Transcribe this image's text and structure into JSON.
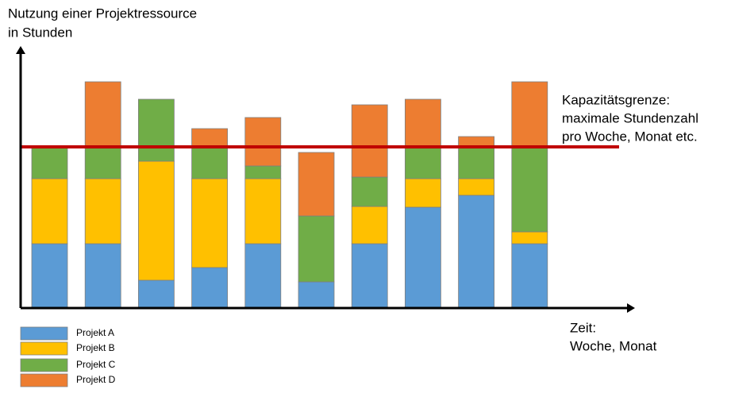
{
  "chart_data": {
    "type": "bar",
    "stacked": true,
    "y_label": [
      "Nutzung einer Projektressource",
      "in Stunden"
    ],
    "x_label": [
      "Zeit:",
      "Woche, Monat"
    ],
    "categories": [
      null,
      null,
      null,
      null,
      null,
      null,
      null,
      null,
      null,
      null
    ],
    "ylim": [
      0,
      330
    ],
    "series": [
      {
        "name": "Projekt A",
        "color": "#5b9bd5",
        "values": [
          81,
          81,
          35,
          51,
          81,
          33,
          81,
          127,
          142,
          81
        ]
      },
      {
        "name": "Projekt B",
        "color": "#ffc000",
        "values": [
          82,
          82,
          150,
          112,
          82,
          0,
          47,
          36,
          21,
          15
        ]
      },
      {
        "name": "Projekt C",
        "color": "#70ad47",
        "values": [
          39,
          39,
          78,
          39,
          16,
          83,
          37,
          39,
          39,
          106
        ]
      },
      {
        "name": "Projekt D",
        "color": "#ed7d31",
        "values": [
          0,
          83,
          0,
          24,
          61,
          80,
          91,
          61,
          14,
          83
        ]
      }
    ],
    "capacity": {
      "value": 203,
      "color": "#c00000",
      "label": [
        "Kapazitätsgrenze:",
        "maximale Stundenzahl",
        "pro Woche, Monat etc."
      ]
    }
  }
}
